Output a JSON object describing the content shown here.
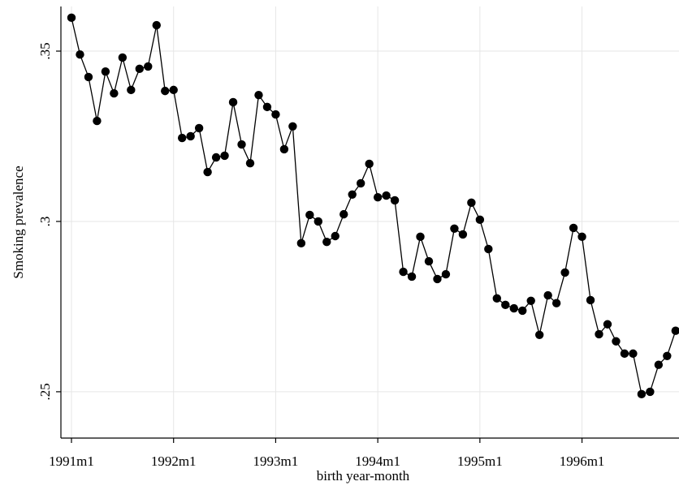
{
  "chart_data": {
    "type": "line",
    "x_label": "birth year-month",
    "y_label": "Smoking prevalence",
    "x": [
      0,
      1,
      2,
      3,
      4,
      5,
      6,
      7,
      8,
      9,
      10,
      11,
      12,
      13,
      14,
      15,
      16,
      17,
      18,
      19,
      20,
      21,
      22,
      23,
      24,
      25,
      26,
      27,
      28,
      29,
      30,
      31,
      32,
      33,
      34,
      35,
      36,
      37,
      38,
      39,
      40,
      41,
      42,
      43,
      44,
      45,
      46,
      47,
      48,
      49,
      50,
      51,
      52,
      53,
      54,
      55,
      56,
      57,
      58,
      59,
      60,
      61,
      62,
      63,
      64,
      65,
      66,
      67,
      68,
      69,
      70,
      71
    ],
    "series": [
      {
        "name": "Smoking prevalence",
        "color": "#000000",
        "values": [
          0.3598,
          0.349,
          0.3424,
          0.3295,
          0.344,
          0.3376,
          0.3481,
          0.3386,
          0.3448,
          0.3455,
          0.3576,
          0.3383,
          0.3386,
          0.3245,
          0.325,
          0.3274,
          0.3145,
          0.3188,
          0.3193,
          0.335,
          0.3226,
          0.3171,
          0.3371,
          0.3336,
          0.3314,
          0.3212,
          0.3279,
          0.2936,
          0.3019,
          0.3,
          0.294,
          0.2957,
          0.3021,
          0.3079,
          0.3112,
          0.3169,
          0.3071,
          0.3076,
          0.3062,
          0.2852,
          0.2838,
          0.2955,
          0.2883,
          0.2831,
          0.2845,
          0.2979,
          0.2962,
          0.3055,
          0.3005,
          0.2919,
          0.2774,
          0.2755,
          0.2745,
          0.2738,
          0.2767,
          0.2667,
          0.2783,
          0.276,
          0.285,
          0.2981,
          0.2955,
          0.2769,
          0.2669,
          0.2698,
          0.2648,
          0.2612,
          0.2612,
          0.2493,
          0.25,
          0.2579,
          0.2605,
          0.2679
        ]
      }
    ],
    "xlim": [
      -1.24,
      71.4
    ],
    "xticks": [
      {
        "value": 0,
        "label": "1991m1"
      },
      {
        "value": 12,
        "label": "1992m1"
      },
      {
        "value": 24,
        "label": "1993m1"
      },
      {
        "value": 36,
        "label": "1994m1"
      },
      {
        "value": 48,
        "label": "1995m1"
      },
      {
        "value": 60,
        "label": "1996m1"
      }
    ],
    "ylim": [
      0.2364,
      0.3631
    ],
    "yticks": [
      {
        "value": 0.35,
        "label": ".35"
      },
      {
        "value": 0.3,
        "label": ".3"
      },
      {
        "value": 0.25,
        "label": ".25"
      }
    ],
    "grid": true
  }
}
